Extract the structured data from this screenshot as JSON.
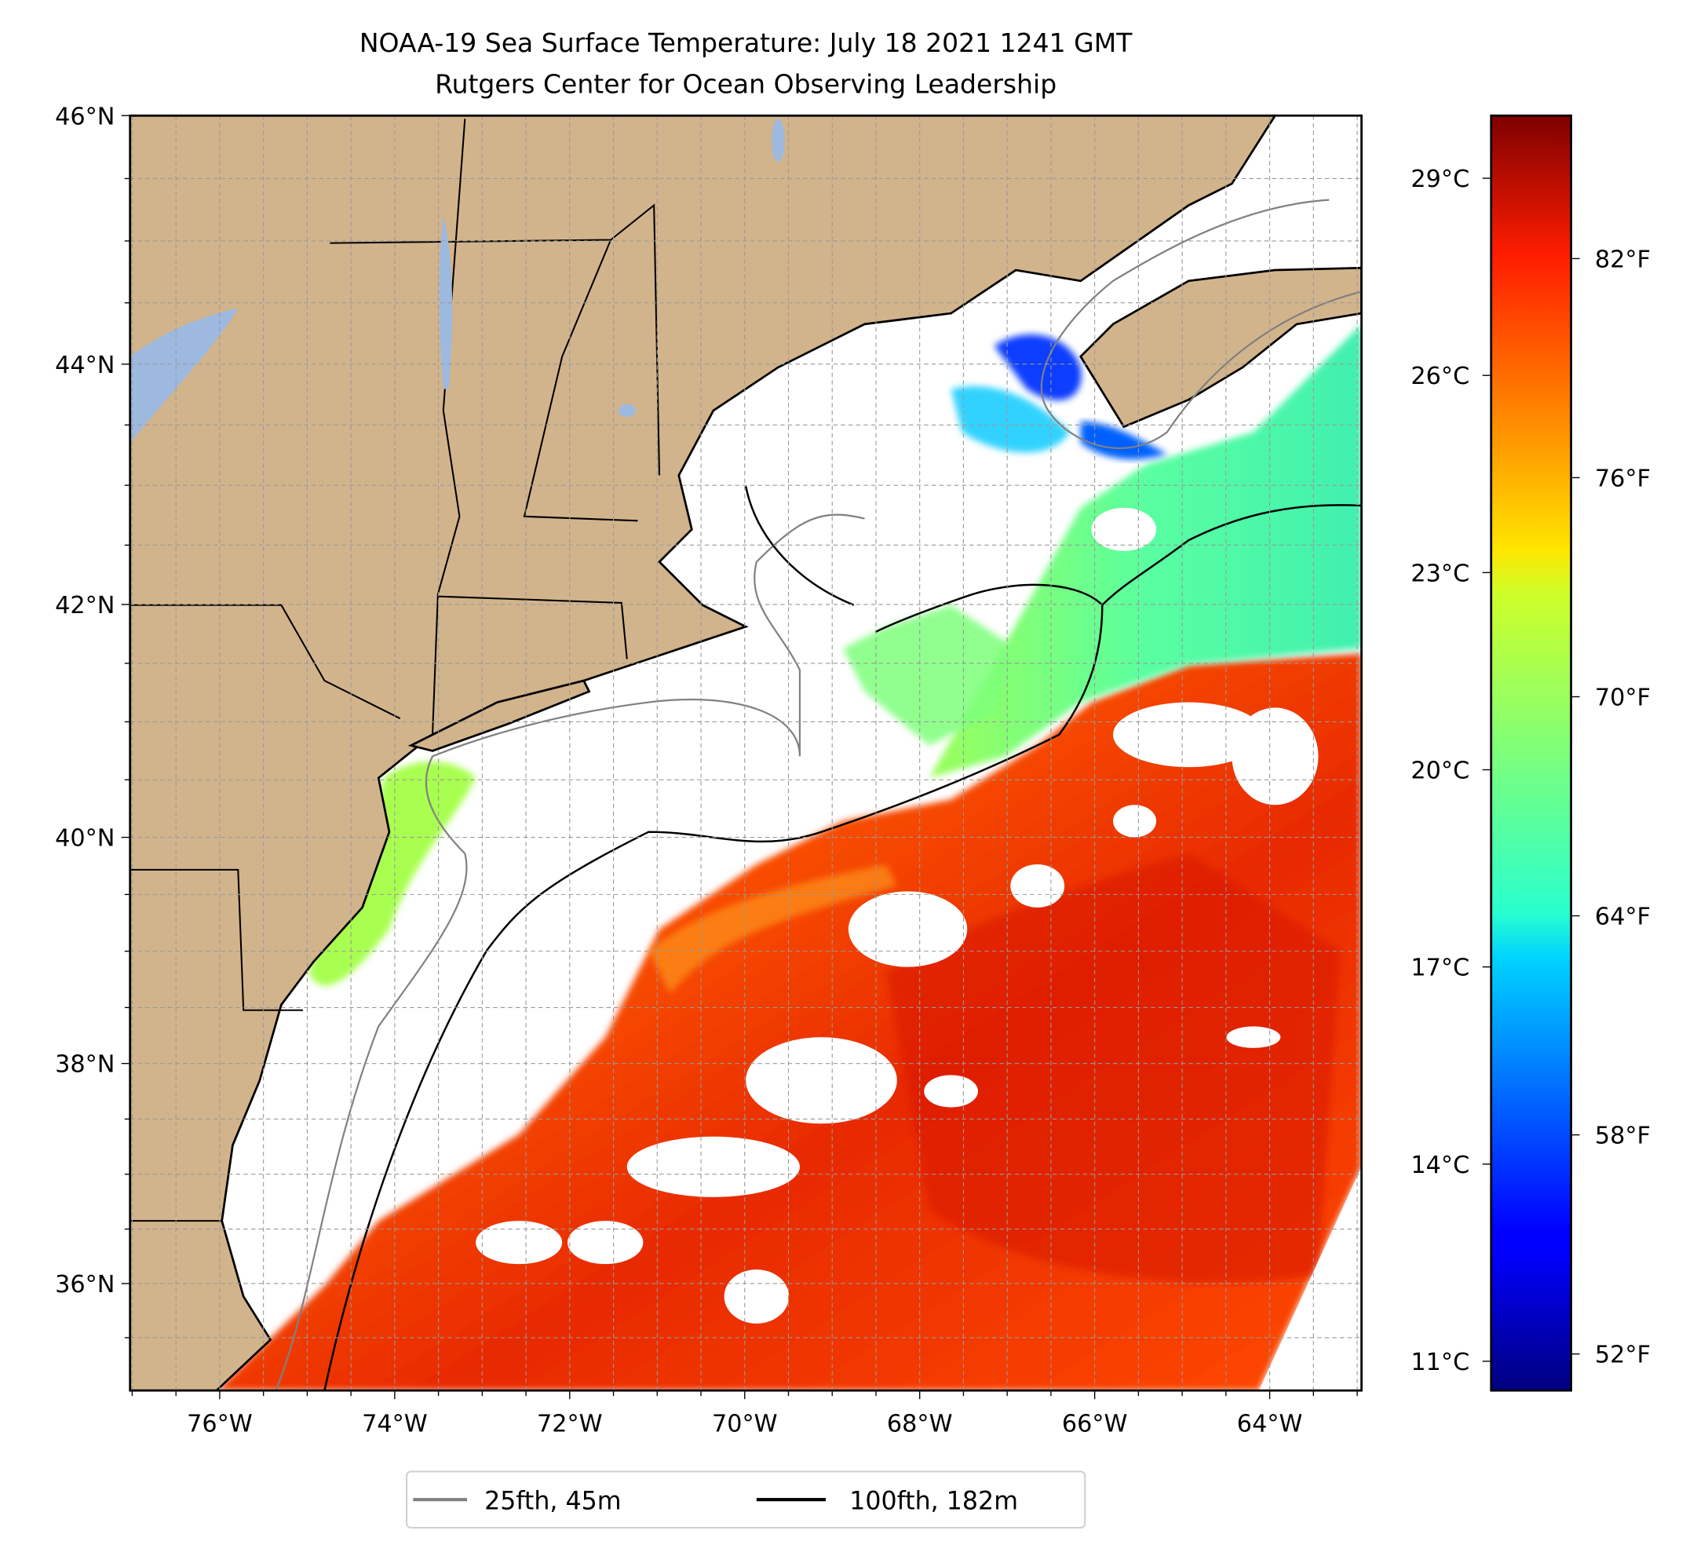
{
  "title": {
    "line1": "NOAA-19 Sea Surface Temperature: July 18 2021 1241 GMT",
    "line2": "Rutgers Center for Ocean Observing Leadership"
  },
  "colors": {
    "land": "#d2b48c",
    "lakes": "#9db9e0",
    "isobath_25fth": "#808080",
    "isobath_100fth": "#000000"
  },
  "chart_data": {
    "type": "heatmap",
    "title": "NOAA-19 Sea Surface Temperature: July 18 2021 1241 GMT",
    "subtitle": "Rutgers Center for Ocean Observing Leadership",
    "projection": "mercator",
    "xlim": [
      -77,
      -63.2
    ],
    "ylim": [
      35.1,
      46
    ],
    "x_ticks": [
      {
        "value": -76,
        "label": "76°W"
      },
      {
        "value": -74,
        "label": "74°W"
      },
      {
        "value": -72,
        "label": "72°W"
      },
      {
        "value": -70,
        "label": "70°W"
      },
      {
        "value": -68,
        "label": "68°W"
      },
      {
        "value": -66,
        "label": "66°W"
      },
      {
        "value": -64,
        "label": "64°W"
      }
    ],
    "y_ticks": [
      {
        "value": 46,
        "label": "46°N"
      },
      {
        "value": 44,
        "label": "44°N"
      },
      {
        "value": 42,
        "label": "42°N"
      },
      {
        "value": 40,
        "label": "40°N"
      },
      {
        "value": 38,
        "label": "38°N"
      },
      {
        "value": 36,
        "label": "36°N"
      }
    ],
    "grid": true,
    "grid_step_deg": 0.5,
    "colorbar": {
      "colormap": "jet",
      "range_c": [
        10.5,
        30
      ],
      "ticks_c": [
        {
          "value": 29,
          "label": "29°C"
        },
        {
          "value": 26,
          "label": "26°C"
        },
        {
          "value": 23,
          "label": "23°C"
        },
        {
          "value": 20,
          "label": "20°C"
        },
        {
          "value": 17,
          "label": "17°C"
        },
        {
          "value": 14,
          "label": "14°C"
        },
        {
          "value": 11,
          "label": "11°C"
        }
      ],
      "ticks_f": [
        {
          "value": 82,
          "label": "82°F"
        },
        {
          "value": 76,
          "label": "76°F"
        },
        {
          "value": 70,
          "label": "70°F"
        },
        {
          "value": 64,
          "label": "64°F"
        },
        {
          "value": 58,
          "label": "58°F"
        },
        {
          "value": 52,
          "label": "52°F"
        }
      ]
    },
    "legend": {
      "placement": "bottom-center",
      "entries": [
        {
          "label": "25fth, 45m",
          "color": "#808080"
        },
        {
          "label": "100fth, 182m",
          "color": "#000000"
        }
      ]
    }
  }
}
